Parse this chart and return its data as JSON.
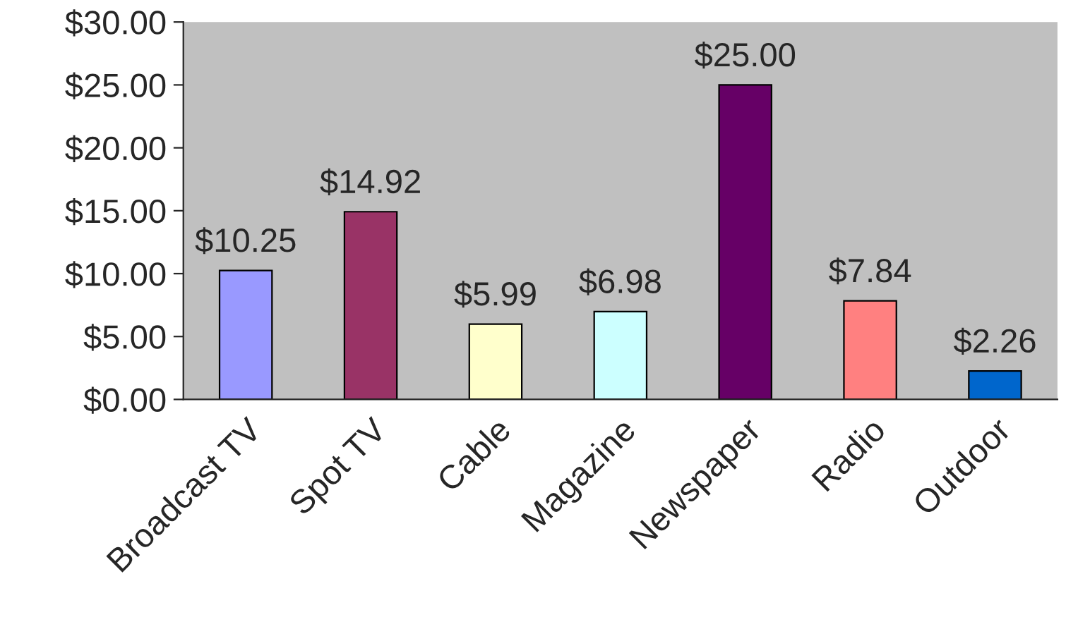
{
  "chart_data": {
    "type": "bar",
    "categories": [
      "Broadcast TV",
      "Spot TV",
      "Cable",
      "Magazine",
      "Newspaper",
      "Radio",
      "Outdoor"
    ],
    "values": [
      10.25,
      14.92,
      5.99,
      6.98,
      25.0,
      7.84,
      2.26
    ],
    "colors": [
      "#9999ff",
      "#993366",
      "#ffffcc",
      "#ccffff",
      "#660066",
      "#ff8080",
      "#0066cc"
    ],
    "value_labels": [
      "$10.25",
      "$14.92",
      "$5.99",
      "$6.98",
      "$25.00",
      "$7.84",
      "$2.26"
    ],
    "ylim": [
      0,
      30
    ],
    "yticks": [
      {
        "value": 0,
        "label": "$0.00"
      },
      {
        "value": 5,
        "label": "$5.00"
      },
      {
        "value": 10,
        "label": "$10.00"
      },
      {
        "value": 15,
        "label": "$15.00"
      },
      {
        "value": 20,
        "label": "$20.00"
      },
      {
        "value": 25,
        "label": "$25.00"
      },
      {
        "value": 30,
        "label": "$30.00"
      }
    ],
    "grid": false,
    "legend": false
  }
}
